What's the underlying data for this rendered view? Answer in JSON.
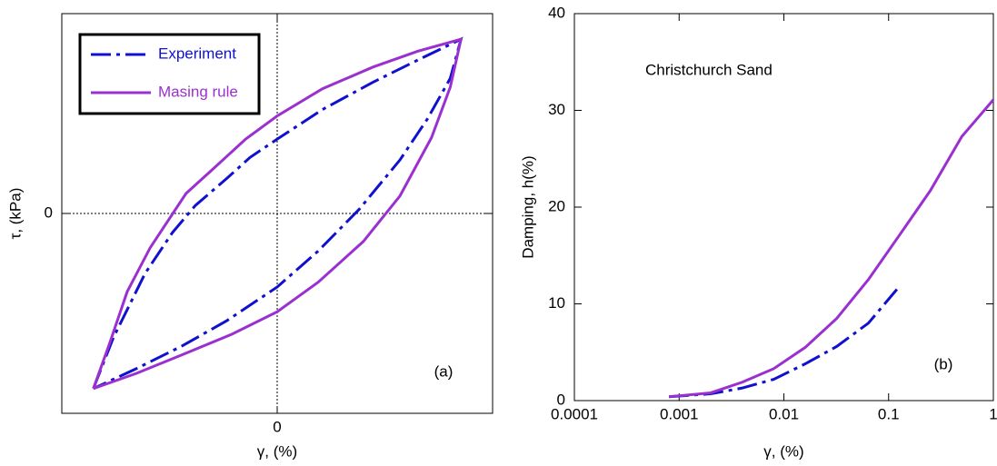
{
  "chart_data": [
    {
      "type": "line",
      "x_label": "γ, (%)",
      "y_label": "τ, (kPa)",
      "annotation": "(a)",
      "xlim": [
        -3,
        3
      ],
      "ylim": [
        -2.5,
        2.5
      ],
      "xticks": [
        0
      ],
      "yticks": [
        0
      ],
      "grid": "zero-lines",
      "legend": "upper left",
      "series": [
        {
          "name": "Experiment",
          "color": "#1010d0",
          "dash": "dashdot",
          "x": [
            -2.56,
            -2.28,
            -1.84,
            -1.46,
            -1.14,
            -0.7,
            -0.38,
            0,
            0.63,
            1.33,
            1.96,
            2.56,
            2.41,
            2.09,
            1.71,
            1.14,
            0.57,
            0,
            -0.7,
            -1.33,
            -1.96,
            -2.56
          ],
          "values": [
            -2.19,
            -1.55,
            -0.75,
            -0.24,
            0.1,
            0.44,
            0.7,
            0.93,
            1.3,
            1.64,
            1.92,
            2.18,
            1.69,
            1.18,
            0.67,
            0.05,
            -0.47,
            -0.92,
            -1.34,
            -1.66,
            -1.94,
            -2.19
          ]
        },
        {
          "name": "Masing rule",
          "color": "#9b30d0",
          "dash": "solid",
          "x": [
            -2.56,
            -2.34,
            -2.09,
            -1.77,
            -1.27,
            -0.89,
            -0.44,
            0,
            0.63,
            1.33,
            1.96,
            2.56,
            2.41,
            2.15,
            1.71,
            1.2,
            0.57,
            0,
            -0.63,
            -1.33,
            -1.96,
            -2.56
          ],
          "values": [
            -2.19,
            -1.64,
            -0.98,
            -0.43,
            0.25,
            0.56,
            0.93,
            1.22,
            1.56,
            1.83,
            2.03,
            2.18,
            1.58,
            0.95,
            0.22,
            -0.35,
            -0.86,
            -1.23,
            -1.51,
            -1.77,
            -2.0,
            -2.19
          ]
        }
      ]
    },
    {
      "type": "line",
      "x_label": "γ, (%)",
      "y_label": "Damping, h(%)",
      "annotation": "(b)",
      "text": "Christchurch Sand",
      "xscale": "log",
      "xlim": [
        0.0001,
        1
      ],
      "ylim": [
        0,
        40
      ],
      "xticks": [
        0.0001,
        0.001,
        0.01,
        0.1,
        1
      ],
      "yticks": [
        0,
        10,
        20,
        30,
        40
      ],
      "series": [
        {
          "name": "Experiment",
          "color": "#1010d0",
          "dash": "dashdot",
          "x": [
            0.0008,
            0.002,
            0.004,
            0.008,
            0.016,
            0.032,
            0.064,
            0.12
          ],
          "values": [
            0.4,
            0.7,
            1.3,
            2.2,
            3.8,
            5.6,
            8.0,
            11.5
          ]
        },
        {
          "name": "Masing rule",
          "color": "#9b30d0",
          "dash": "solid",
          "x": [
            0.0008,
            0.002,
            0.004,
            0.008,
            0.016,
            0.032,
            0.064,
            0.125,
            0.25,
            0.5,
            1
          ],
          "values": [
            0.4,
            0.8,
            1.9,
            3.3,
            5.5,
            8.5,
            12.5,
            17,
            21.7,
            27.3,
            31.1
          ]
        }
      ]
    }
  ]
}
